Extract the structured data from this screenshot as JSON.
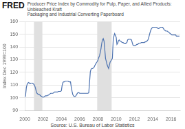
{
  "chart_data": {
    "type": "line",
    "title": "Producer Price Index by Commodity for Pulp, Paper, and Allied Products: Unbleached Kraft",
    "subtitle": "Packaging and Industrial Converting Paperboard",
    "annotations": [
      "FRED",
      "Source: U.S. Bureau of Labor Statistics"
    ],
    "ylabel": "Index Dec 1999=100",
    "color": "#4c72b0",
    "xlim": [
      2000,
      2017
    ],
    "ylim": [
      90,
      160
    ],
    "xticks": [
      2000,
      2002,
      2004,
      2006,
      2008,
      2010,
      2012,
      2014,
      2016
    ],
    "yticks": [
      90,
      100,
      110,
      120,
      130,
      140,
      150,
      160
    ],
    "grid": true,
    "recession_bands": {
      "color": "#e0e0e0",
      "ranges": [
        [
          2001.0,
          2001.92
        ],
        [
          2007.92,
          2009.5
        ]
      ]
    },
    "x": [
      2000.0,
      2000.08,
      2000.17,
      2000.25,
      2000.33,
      2000.42,
      2000.5,
      2000.58,
      2000.67,
      2000.75,
      2000.83,
      2000.92,
      2001.0,
      2001.08,
      2001.17,
      2001.25,
      2001.33,
      2001.42,
      2001.5,
      2001.58,
      2001.67,
      2001.75,
      2001.83,
      2001.92,
      2002.0,
      2002.08,
      2002.17,
      2002.25,
      2002.33,
      2002.42,
      2002.5,
      2002.58,
      2002.67,
      2002.75,
      2002.83,
      2002.92,
      2003.0,
      2003.08,
      2003.17,
      2003.25,
      2003.33,
      2003.42,
      2003.5,
      2003.58,
      2003.67,
      2003.75,
      2003.83,
      2003.92,
      2004.0,
      2004.08,
      2004.17,
      2004.25,
      2004.33,
      2004.42,
      2004.5,
      2004.58,
      2004.67,
      2004.75,
      2004.83,
      2004.92,
      2005.0,
      2005.08,
      2005.17,
      2005.25,
      2005.33,
      2005.42,
      2005.5,
      2005.58,
      2005.67,
      2005.75,
      2005.83,
      2005.92,
      2006.0,
      2006.08,
      2006.17,
      2006.25,
      2006.33,
      2006.42,
      2006.5,
      2006.58,
      2006.67,
      2006.75,
      2006.83,
      2006.92,
      2007.0,
      2007.08,
      2007.17,
      2007.25,
      2007.33,
      2007.42,
      2007.5,
      2007.58,
      2007.67,
      2007.75,
      2007.83,
      2007.92,
      2008.0,
      2008.08,
      2008.17,
      2008.25,
      2008.33,
      2008.42,
      2008.5,
      2008.58,
      2008.67,
      2008.75,
      2008.83,
      2008.92,
      2009.0,
      2009.08,
      2009.17,
      2009.25,
      2009.33,
      2009.42,
      2009.5,
      2009.58,
      2009.67,
      2009.75,
      2009.83,
      2009.92,
      2010.0,
      2010.08,
      2010.17,
      2010.25,
      2010.33,
      2010.42,
      2010.5,
      2010.58,
      2010.67,
      2010.75,
      2010.83,
      2010.92,
      2011.0,
      2011.08,
      2011.17,
      2011.25,
      2011.33,
      2011.42,
      2011.5,
      2011.58,
      2011.67,
      2011.75,
      2011.83,
      2011.92,
      2012.0,
      2012.08,
      2012.17,
      2012.25,
      2012.33,
      2012.42,
      2012.5,
      2012.58,
      2012.67,
      2012.75,
      2012.83,
      2012.92,
      2013.0,
      2013.08,
      2013.17,
      2013.25,
      2013.33,
      2013.42,
      2013.5,
      2013.58,
      2013.67,
      2013.75,
      2013.83,
      2013.92,
      2014.0,
      2014.08,
      2014.17,
      2014.25,
      2014.33,
      2014.42,
      2014.5,
      2014.58,
      2014.67,
      2014.75,
      2014.83,
      2014.92,
      2015.0,
      2015.08,
      2015.17,
      2015.25,
      2015.33,
      2015.42,
      2015.5,
      2015.58,
      2015.67,
      2015.75,
      2015.83,
      2015.92,
      2016.0,
      2016.08,
      2016.17,
      2016.25,
      2016.33,
      2016.42,
      2016.5,
      2016.58,
      2016.67,
      2016.75,
      2016.83,
      2016.92
    ],
    "values": [
      100.5,
      101.5,
      108.0,
      110.5,
      111.5,
      112.0,
      111.5,
      111.0,
      111.5,
      111.5,
      111.5,
      111.0,
      110.5,
      109.5,
      107.5,
      105.0,
      103.5,
      103.0,
      102.5,
      102.5,
      102.0,
      101.5,
      101.0,
      100.5,
      100.5,
      100.5,
      101.0,
      101.5,
      101.5,
      101.5,
      102.0,
      102.0,
      102.5,
      103.0,
      103.5,
      103.5,
      103.5,
      103.5,
      104.0,
      104.5,
      104.5,
      104.5,
      104.5,
      104.5,
      105.0,
      105.0,
      105.0,
      105.0,
      105.5,
      109.5,
      112.0,
      112.5,
      112.5,
      113.0,
      113.0,
      113.0,
      113.0,
      113.0,
      112.5,
      112.5,
      112.5,
      108.5,
      105.0,
      102.5,
      101.5,
      101.0,
      101.0,
      101.5,
      102.5,
      103.5,
      104.0,
      104.0,
      103.5,
      103.5,
      103.5,
      103.5,
      103.5,
      103.5,
      103.5,
      103.5,
      103.5,
      103.5,
      103.5,
      103.5,
      104.0,
      112.0,
      120.5,
      122.5,
      123.0,
      123.0,
      123.5,
      124.0,
      125.5,
      126.5,
      127.5,
      128.5,
      129.5,
      131.5,
      133.0,
      135.5,
      138.5,
      143.0,
      145.5,
      146.5,
      144.5,
      138.0,
      131.0,
      128.5,
      126.0,
      124.5,
      123.0,
      125.5,
      128.0,
      129.0,
      130.0,
      131.0,
      145.0,
      148.5,
      150.5,
      149.0,
      147.5,
      142.0,
      143.0,
      145.0,
      145.5,
      144.5,
      144.5,
      144.0,
      143.5,
      143.5,
      143.0,
      142.5,
      142.5,
      143.0,
      143.5,
      145.5,
      146.0,
      146.0,
      146.0,
      146.0,
      145.5,
      143.5,
      141.5,
      141.0,
      141.0,
      141.0,
      141.5,
      142.0,
      142.0,
      142.5,
      143.0,
      143.0,
      143.0,
      143.5,
      143.5,
      143.5,
      143.5,
      143.5,
      144.0,
      144.0,
      144.5,
      145.0,
      146.0,
      148.0,
      150.5,
      152.5,
      154.0,
      155.0,
      155.5,
      155.5,
      155.5,
      155.5,
      155.5,
      155.5,
      155.0,
      154.5,
      154.5,
      155.0,
      155.5,
      155.5,
      155.5,
      155.5,
      154.5,
      153.5,
      153.0,
      152.5,
      152.5,
      152.5,
      152.0,
      151.5,
      151.0,
      150.5,
      150.0,
      149.5,
      149.5,
      149.5,
      149.5,
      149.5,
      149.5,
      148.5,
      148.5,
      148.5,
      148.5,
      148.5
    ]
  }
}
